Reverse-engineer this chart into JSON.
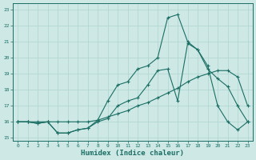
{
  "xlabel": "Humidex (Indice chaleur)",
  "xlim": [
    -0.5,
    23.5
  ],
  "ylim": [
    14.8,
    23.4
  ],
  "yticks": [
    15,
    16,
    17,
    18,
    19,
    20,
    21,
    22,
    23
  ],
  "xticks": [
    0,
    1,
    2,
    3,
    4,
    5,
    6,
    7,
    8,
    9,
    10,
    11,
    12,
    13,
    14,
    15,
    16,
    17,
    18,
    19,
    20,
    21,
    22,
    23
  ],
  "bg_color": "#cde8e5",
  "grid_color": "#b0d5d0",
  "line_color": "#1a6e63",
  "line1_x": [
    0,
    1,
    2,
    3,
    4,
    5,
    6,
    7,
    8,
    9,
    10,
    11,
    12,
    13,
    14,
    15,
    16,
    17,
    18,
    19,
    20,
    21,
    22,
    23
  ],
  "line1_y": [
    16.0,
    16.0,
    16.0,
    16.0,
    16.0,
    16.0,
    16.0,
    16.0,
    16.1,
    16.3,
    16.5,
    16.7,
    17.0,
    17.2,
    17.5,
    17.8,
    18.1,
    18.5,
    18.8,
    19.0,
    19.2,
    19.2,
    18.8,
    17.0
  ],
  "line2_x": [
    0,
    1,
    2,
    3,
    4,
    5,
    6,
    7,
    8,
    9,
    10,
    11,
    12,
    13,
    14,
    15,
    16,
    17,
    18,
    19,
    20,
    21,
    22,
    23
  ],
  "line2_y": [
    16.0,
    16.0,
    15.9,
    16.0,
    15.3,
    15.3,
    15.5,
    15.6,
    16.0,
    16.2,
    17.0,
    17.3,
    17.5,
    18.3,
    19.2,
    19.3,
    17.3,
    20.9,
    20.5,
    19.3,
    18.7,
    18.2,
    17.0,
    16.0
  ],
  "line3_x": [
    0,
    1,
    2,
    3,
    4,
    5,
    6,
    7,
    8,
    9,
    10,
    11,
    12,
    13,
    14,
    15,
    16,
    17,
    18,
    19,
    20,
    21,
    22,
    23
  ],
  "line3_y": [
    16.0,
    16.0,
    15.9,
    16.0,
    15.3,
    15.3,
    15.5,
    15.6,
    16.1,
    17.3,
    18.3,
    18.5,
    19.3,
    19.5,
    20.0,
    22.5,
    22.7,
    21.0,
    20.5,
    19.5,
    17.0,
    16.0,
    15.5,
    16.0
  ]
}
